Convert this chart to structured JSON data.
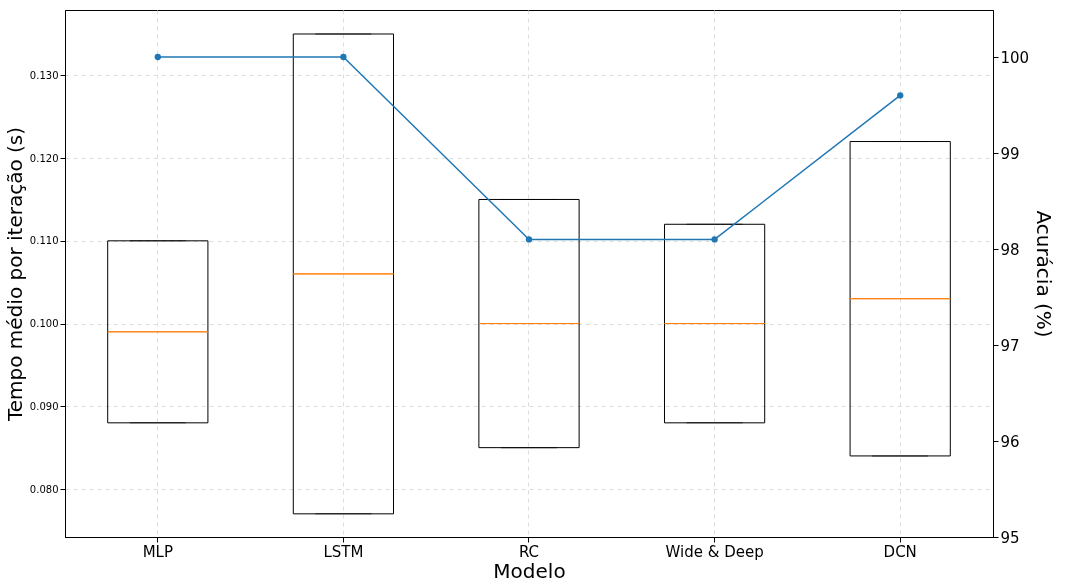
{
  "chart_data": {
    "type": "box",
    "xlabel": "Modelo",
    "ylabel": "Tempo médio por iteração (s)",
    "y2label": "Acurácia (%)",
    "categories": [
      "MLP",
      "LSTM",
      "RC",
      "Wide & Deep",
      "DCN"
    ],
    "series": [
      {
        "color": "#000000",
        "boxes": [
          {
            "low": 0.088,
            "q1": 0.088,
            "median": 0.099,
            "q3": 0.11,
            "high": 0.11
          },
          {
            "low": 0.077,
            "q1": 0.077,
            "median": 0.106,
            "q3": 0.135,
            "high": 0.135
          },
          {
            "low": 0.085,
            "q1": 0.085,
            "median": 0.1,
            "q3": 0.115,
            "high": 0.115
          },
          {
            "low": 0.088,
            "q1": 0.088,
            "median": 0.1,
            "q3": 0.112,
            "high": 0.112
          },
          {
            "low": 0.084,
            "q1": 0.084,
            "median": 0.103,
            "q3": 0.122,
            "high": 0.122
          }
        ]
      },
      {
        "type": "line",
        "axis": "y2",
        "color": "#1f77b4",
        "values": [
          100,
          100,
          98.1,
          98.1,
          99.6
        ]
      }
    ],
    "ylim": [
      0.0742,
      0.1379
    ],
    "yticks": [
      {
        "value": 0.08,
        "label": "0.080"
      },
      {
        "value": 0.09,
        "label": "0.090"
      },
      {
        "value": 0.1,
        "label": "0.100"
      },
      {
        "value": 0.11,
        "label": "0.110"
      },
      {
        "value": 0.12,
        "label": "0.120"
      },
      {
        "value": 0.13,
        "label": "0.130"
      }
    ],
    "y2lim": [
      95,
      100.49
    ],
    "y2ticks": [
      95,
      96,
      97,
      98,
      99,
      100
    ],
    "grid": true,
    "marker": "circle",
    "line_style": "solid"
  }
}
